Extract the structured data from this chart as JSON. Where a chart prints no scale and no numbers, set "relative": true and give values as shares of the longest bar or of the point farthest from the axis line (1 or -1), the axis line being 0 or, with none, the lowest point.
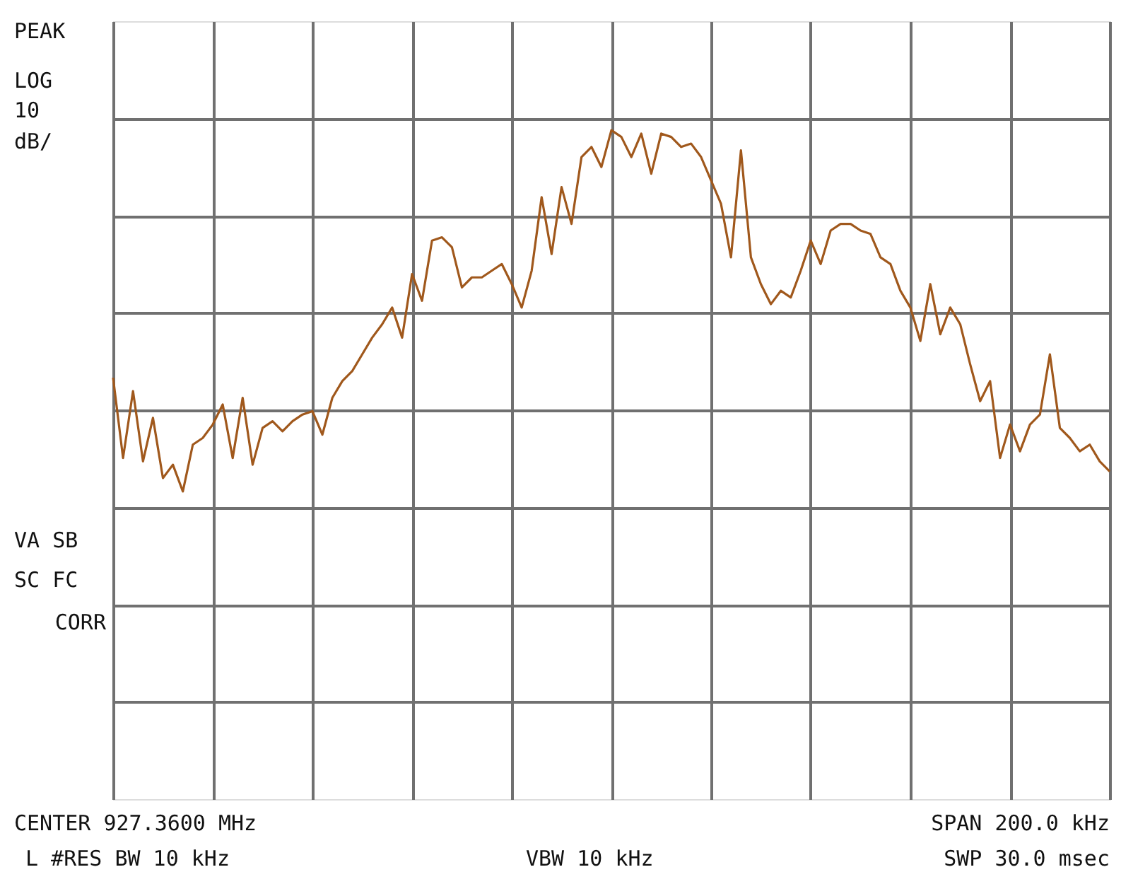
{
  "chart_data": {
    "type": "line",
    "relative": true,
    "grid": true,
    "tick_labels": false,
    "marker": "none",
    "line_style": "solid",
    "categories": [
      null,
      null,
      null,
      null,
      null,
      null,
      null,
      null,
      null,
      null,
      null,
      null,
      null,
      null,
      null,
      null,
      null,
      null,
      null,
      null,
      null,
      null,
      null,
      null,
      null,
      null,
      null,
      null,
      null,
      null,
      null,
      null,
      null,
      null,
      null,
      null,
      null,
      null,
      null,
      null,
      null,
      null,
      null,
      null,
      null,
      null,
      null,
      null,
      null,
      null,
      null,
      null,
      null,
      null,
      null,
      null,
      null,
      null,
      null,
      null,
      null,
      null,
      null,
      null,
      null,
      null,
      null,
      null,
      null,
      null,
      null,
      null,
      null,
      null,
      null,
      null,
      null,
      null,
      null,
      null,
      null,
      null,
      null,
      null,
      null,
      null,
      null,
      null,
      null,
      null,
      null,
      null,
      null,
      null,
      null,
      null,
      null,
      null,
      null,
      null,
      null
    ],
    "series": [
      {
        "color": "#a0581c",
        "values": [
          0.63,
          0.51,
          0.61,
          0.505,
          0.57,
          0.48,
          0.5,
          0.46,
          0.53,
          0.54,
          0.56,
          0.59,
          0.51,
          0.6,
          0.5,
          0.555,
          0.565,
          0.55,
          0.565,
          0.575,
          0.58,
          0.545,
          0.6,
          0.625,
          0.64,
          0.665,
          0.69,
          0.71,
          0.735,
          0.69,
          0.785,
          0.745,
          0.835,
          0.84,
          0.825,
          0.765,
          0.78,
          0.78,
          0.79,
          0.8,
          0.77,
          0.735,
          0.79,
          0.9,
          0.815,
          0.915,
          0.86,
          0.96,
          0.975,
          0.945,
          1,
          0.99,
          0.96,
          0.995,
          0.935,
          0.995,
          0.99,
          0.975,
          0.98,
          0.96,
          0.925,
          0.89,
          0.81,
          0.97,
          0.81,
          0.77,
          0.74,
          0.76,
          0.75,
          0.79,
          0.835,
          0.8,
          0.85,
          0.86,
          0.86,
          0.85,
          0.845,
          0.81,
          0.8,
          0.76,
          0.735,
          0.685,
          0.77,
          0.695,
          0.735,
          0.71,
          0.65,
          0.595,
          0.625,
          0.51,
          0.56,
          0.52,
          0.56,
          0.575,
          0.665,
          0.555,
          0.54,
          0.52,
          0.53,
          0.505,
          0.49
        ]
      }
    ],
    "annotations": [
      "PEAK",
      "LOG",
      "10",
      "dB/",
      "VA SB",
      "SC FC",
      "CORR",
      "CENTER 927.3600 MHz",
      "SPAN 200.0 kHz",
      "L #RES BW 10 kHz",
      "VBW 10 kHz",
      "SWP 30.0 msec"
    ]
  }
}
